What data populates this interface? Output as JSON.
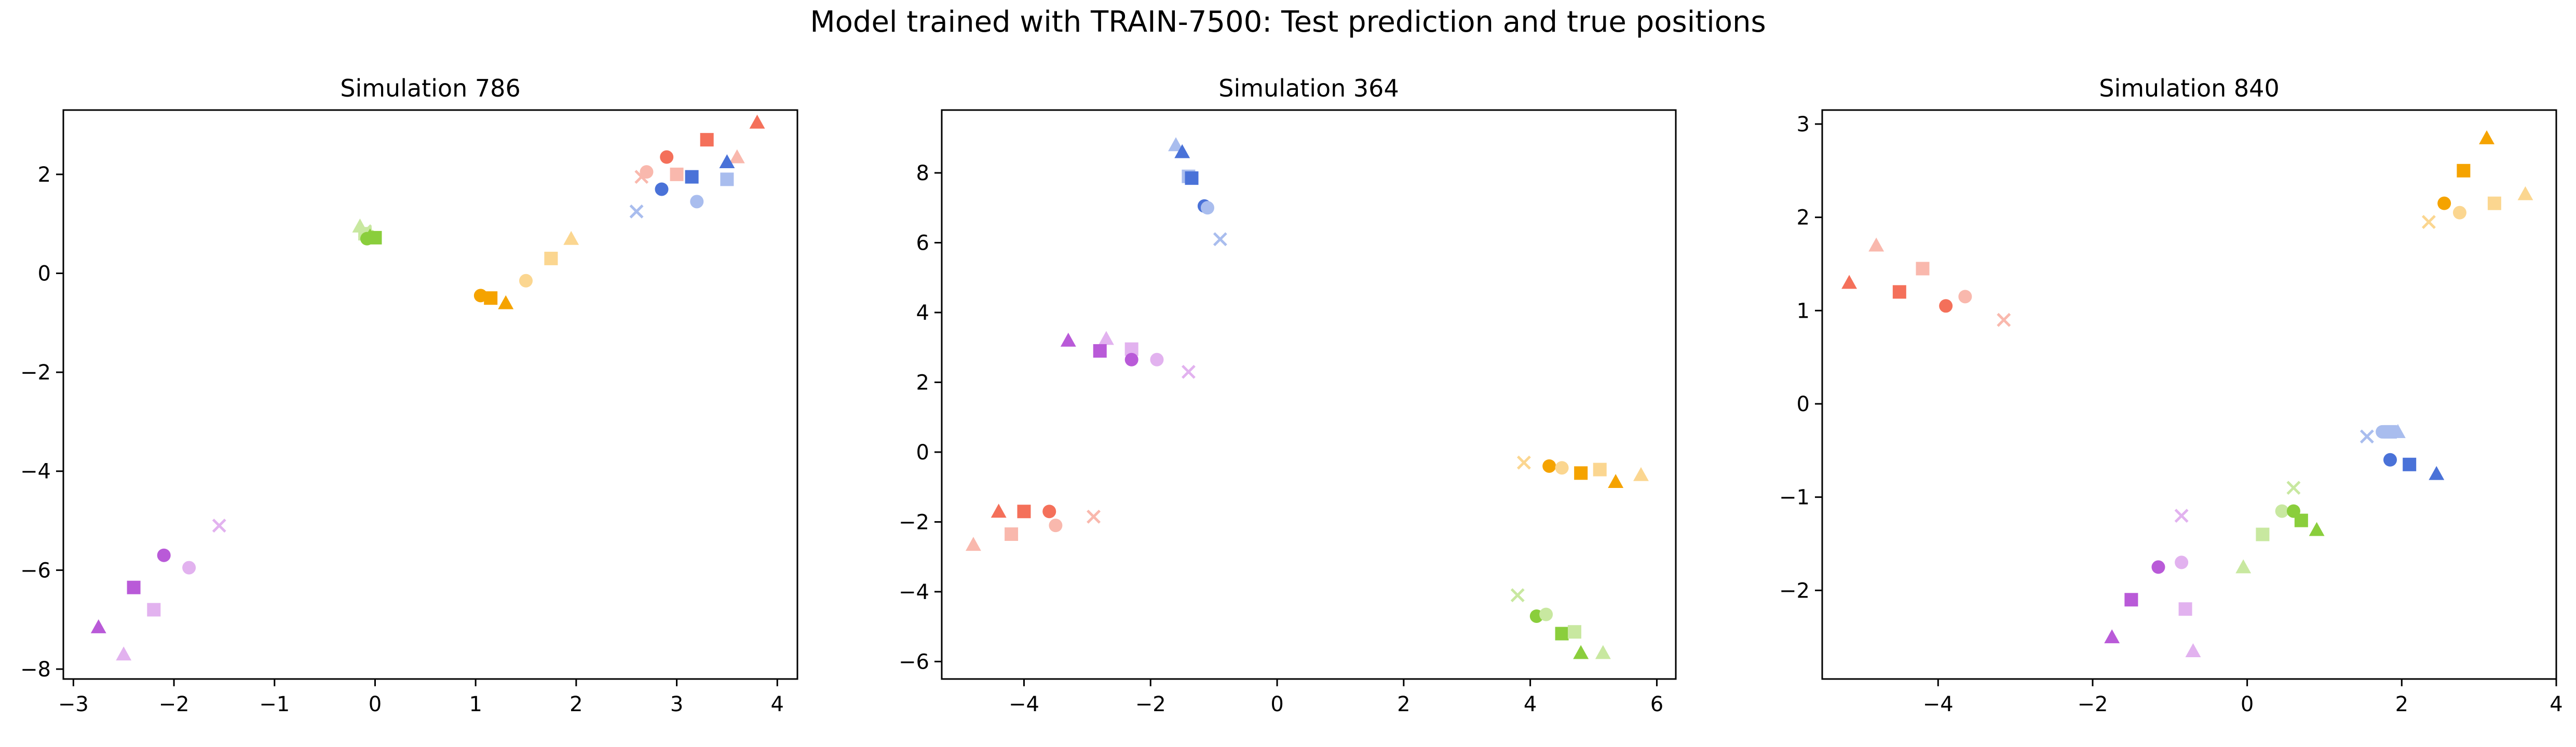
{
  "figure": {
    "suptitle": "Model trained with TRAIN-7500: Test prediction and true positions"
  },
  "colors": {
    "red": "#f4705a",
    "red_light": "#f9b8ad",
    "blue": "#4a72d8",
    "blue_light": "#a9bdee",
    "orange": "#f5a300",
    "orange_light": "#fbd690",
    "green": "#8ace3c",
    "green_light": "#c8e8a0",
    "purple": "#b95ad8",
    "purple_light": "#e2b2ef"
  },
  "chart_data": [
    {
      "type": "scatter",
      "title": "Simulation 786",
      "xlabel": "",
      "ylabel": "",
      "xlim": [
        -3.1,
        4.2
      ],
      "ylim": [
        -8.2,
        3.3
      ],
      "xticks": [
        -3,
        -2,
        -1,
        0,
        1,
        2,
        3,
        4
      ],
      "yticks": [
        -8,
        -6,
        -4,
        -2,
        0,
        2
      ],
      "grid": false,
      "points": [
        {
          "x": 3.8,
          "y": 3.05,
          "marker": "triangle",
          "color": "red"
        },
        {
          "x": 3.3,
          "y": 2.7,
          "marker": "square",
          "color": "red"
        },
        {
          "x": 2.9,
          "y": 2.35,
          "marker": "circle",
          "color": "red"
        },
        {
          "x": 3.6,
          "y": 2.35,
          "marker": "triangle",
          "color": "red_light"
        },
        {
          "x": 3.0,
          "y": 2.0,
          "marker": "square",
          "color": "red_light"
        },
        {
          "x": 2.7,
          "y": 2.05,
          "marker": "circle",
          "color": "red_light"
        },
        {
          "x": 2.65,
          "y": 1.95,
          "marker": "x",
          "color": "red_light"
        },
        {
          "x": 3.5,
          "y": 2.25,
          "marker": "triangle",
          "color": "blue"
        },
        {
          "x": 3.15,
          "y": 1.95,
          "marker": "square",
          "color": "blue"
        },
        {
          "x": 2.85,
          "y": 1.7,
          "marker": "circle",
          "color": "blue"
        },
        {
          "x": 3.5,
          "y": 1.9,
          "marker": "square",
          "color": "blue_light"
        },
        {
          "x": 3.2,
          "y": 1.45,
          "marker": "circle",
          "color": "blue_light"
        },
        {
          "x": 2.6,
          "y": 1.25,
          "marker": "x",
          "color": "blue_light"
        },
        {
          "x": -0.15,
          "y": 0.95,
          "marker": "triangle",
          "color": "green_light"
        },
        {
          "x": -0.1,
          "y": 0.8,
          "marker": "square",
          "color": "green_light"
        },
        {
          "x": -0.05,
          "y": 0.75,
          "marker": "circle",
          "color": "green_light"
        },
        {
          "x": -0.1,
          "y": 0.85,
          "marker": "x",
          "color": "green_light"
        },
        {
          "x": -0.05,
          "y": 0.75,
          "marker": "triangle",
          "color": "green"
        },
        {
          "x": 0.0,
          "y": 0.72,
          "marker": "square",
          "color": "green"
        },
        {
          "x": -0.08,
          "y": 0.7,
          "marker": "circle",
          "color": "green"
        },
        {
          "x": 1.05,
          "y": -0.45,
          "marker": "circle",
          "color": "orange"
        },
        {
          "x": 1.15,
          "y": -0.5,
          "marker": "square",
          "color": "orange"
        },
        {
          "x": 1.3,
          "y": -0.6,
          "marker": "triangle",
          "color": "orange"
        },
        {
          "x": 1.5,
          "y": -0.15,
          "marker": "circle",
          "color": "orange_light"
        },
        {
          "x": 1.75,
          "y": 0.3,
          "marker": "square",
          "color": "orange_light"
        },
        {
          "x": 1.95,
          "y": 0.7,
          "marker": "triangle",
          "color": "orange_light"
        },
        {
          "x": -2.1,
          "y": -5.7,
          "marker": "circle",
          "color": "purple"
        },
        {
          "x": -2.4,
          "y": -6.35,
          "marker": "square",
          "color": "purple"
        },
        {
          "x": -2.75,
          "y": -7.15,
          "marker": "triangle",
          "color": "purple"
        },
        {
          "x": -1.55,
          "y": -5.1,
          "marker": "x",
          "color": "purple_light"
        },
        {
          "x": -1.85,
          "y": -5.95,
          "marker": "circle",
          "color": "purple_light"
        },
        {
          "x": -2.2,
          "y": -6.8,
          "marker": "square",
          "color": "purple_light"
        },
        {
          "x": -2.5,
          "y": -7.7,
          "marker": "triangle",
          "color": "purple_light"
        }
      ]
    },
    {
      "type": "scatter",
      "title": "Simulation 364",
      "xlabel": "",
      "ylabel": "",
      "xlim": [
        -5.3,
        6.3
      ],
      "ylim": [
        -6.5,
        9.8
      ],
      "xticks": [
        -4,
        -2,
        0,
        2,
        4,
        6
      ],
      "yticks": [
        -6,
        -4,
        -2,
        0,
        2,
        4,
        6,
        8
      ],
      "grid": false,
      "points": [
        {
          "x": -1.6,
          "y": 8.8,
          "marker": "triangle",
          "color": "blue_light"
        },
        {
          "x": -1.5,
          "y": 8.6,
          "marker": "triangle",
          "color": "blue"
        },
        {
          "x": -1.4,
          "y": 7.9,
          "marker": "square",
          "color": "blue_light"
        },
        {
          "x": -1.35,
          "y": 7.85,
          "marker": "square",
          "color": "blue"
        },
        {
          "x": -1.15,
          "y": 7.05,
          "marker": "circle",
          "color": "blue"
        },
        {
          "x": -1.1,
          "y": 7.0,
          "marker": "circle",
          "color": "blue_light"
        },
        {
          "x": -0.9,
          "y": 6.1,
          "marker": "x",
          "color": "blue_light"
        },
        {
          "x": -3.3,
          "y": 3.2,
          "marker": "triangle",
          "color": "purple"
        },
        {
          "x": -2.7,
          "y": 3.25,
          "marker": "triangle",
          "color": "purple_light"
        },
        {
          "x": -2.8,
          "y": 2.9,
          "marker": "square",
          "color": "purple"
        },
        {
          "x": -2.3,
          "y": 2.95,
          "marker": "square",
          "color": "purple_light"
        },
        {
          "x": -2.3,
          "y": 2.65,
          "marker": "circle",
          "color": "purple"
        },
        {
          "x": -1.9,
          "y": 2.65,
          "marker": "circle",
          "color": "purple_light"
        },
        {
          "x": -1.4,
          "y": 2.3,
          "marker": "x",
          "color": "purple_light"
        },
        {
          "x": -4.4,
          "y": -1.7,
          "marker": "triangle",
          "color": "red"
        },
        {
          "x": -4.0,
          "y": -1.7,
          "marker": "square",
          "color": "red"
        },
        {
          "x": -3.6,
          "y": -1.7,
          "marker": "circle",
          "color": "red"
        },
        {
          "x": -2.9,
          "y": -1.85,
          "marker": "x",
          "color": "red_light"
        },
        {
          "x": -3.5,
          "y": -2.1,
          "marker": "circle",
          "color": "red_light"
        },
        {
          "x": -4.2,
          "y": -2.35,
          "marker": "square",
          "color": "red_light"
        },
        {
          "x": -4.8,
          "y": -2.65,
          "marker": "triangle",
          "color": "red_light"
        },
        {
          "x": 3.9,
          "y": -0.3,
          "marker": "x",
          "color": "orange_light"
        },
        {
          "x": 4.3,
          "y": -0.4,
          "marker": "circle",
          "color": "orange"
        },
        {
          "x": 4.5,
          "y": -0.45,
          "marker": "circle",
          "color": "orange_light"
        },
        {
          "x": 4.8,
          "y": -0.6,
          "marker": "square",
          "color": "orange"
        },
        {
          "x": 5.1,
          "y": -0.5,
          "marker": "square",
          "color": "orange_light"
        },
        {
          "x": 5.35,
          "y": -0.85,
          "marker": "triangle",
          "color": "orange"
        },
        {
          "x": 5.75,
          "y": -0.65,
          "marker": "triangle",
          "color": "orange_light"
        },
        {
          "x": 3.8,
          "y": -4.1,
          "marker": "x",
          "color": "green_light"
        },
        {
          "x": 4.1,
          "y": -4.7,
          "marker": "circle",
          "color": "green"
        },
        {
          "x": 4.25,
          "y": -4.65,
          "marker": "circle",
          "color": "green_light"
        },
        {
          "x": 4.5,
          "y": -5.2,
          "marker": "square",
          "color": "green"
        },
        {
          "x": 4.7,
          "y": -5.15,
          "marker": "square",
          "color": "green_light"
        },
        {
          "x": 4.8,
          "y": -5.75,
          "marker": "triangle",
          "color": "green"
        },
        {
          "x": 5.15,
          "y": -5.75,
          "marker": "triangle",
          "color": "green_light"
        }
      ]
    },
    {
      "type": "scatter",
      "title": "Simulation 840",
      "xlabel": "",
      "ylabel": "",
      "xlim": [
        -5.5,
        4.0
      ],
      "ylim": [
        -2.95,
        3.15
      ],
      "xticks": [
        -4,
        -2,
        0,
        2,
        4
      ],
      "yticks": [
        -2,
        -1,
        0,
        1,
        2,
        3
      ],
      "grid": false,
      "points": [
        {
          "x": 3.1,
          "y": 2.85,
          "marker": "triangle",
          "color": "orange"
        },
        {
          "x": 2.8,
          "y": 2.5,
          "marker": "square",
          "color": "orange"
        },
        {
          "x": 2.55,
          "y": 2.15,
          "marker": "circle",
          "color": "orange"
        },
        {
          "x": 3.6,
          "y": 2.25,
          "marker": "triangle",
          "color": "orange_light"
        },
        {
          "x": 3.2,
          "y": 2.15,
          "marker": "square",
          "color": "orange_light"
        },
        {
          "x": 2.75,
          "y": 2.05,
          "marker": "circle",
          "color": "orange_light"
        },
        {
          "x": 2.35,
          "y": 1.95,
          "marker": "x",
          "color": "orange_light"
        },
        {
          "x": -5.15,
          "y": 1.3,
          "marker": "triangle",
          "color": "red"
        },
        {
          "x": -4.5,
          "y": 1.2,
          "marker": "square",
          "color": "red"
        },
        {
          "x": -3.9,
          "y": 1.05,
          "marker": "circle",
          "color": "red"
        },
        {
          "x": -4.8,
          "y": 1.7,
          "marker": "triangle",
          "color": "red_light"
        },
        {
          "x": -4.2,
          "y": 1.45,
          "marker": "square",
          "color": "red_light"
        },
        {
          "x": -3.65,
          "y": 1.15,
          "marker": "circle",
          "color": "red_light"
        },
        {
          "x": -3.15,
          "y": 0.9,
          "marker": "x",
          "color": "red_light"
        },
        {
          "x": 1.55,
          "y": -0.35,
          "marker": "x",
          "color": "blue_light"
        },
        {
          "x": 1.75,
          "y": -0.3,
          "marker": "circle",
          "color": "blue_light"
        },
        {
          "x": 1.85,
          "y": -0.3,
          "marker": "square",
          "color": "blue_light"
        },
        {
          "x": 1.95,
          "y": -0.3,
          "marker": "triangle",
          "color": "blue_light"
        },
        {
          "x": 1.85,
          "y": -0.6,
          "marker": "circle",
          "color": "blue"
        },
        {
          "x": 2.1,
          "y": -0.65,
          "marker": "square",
          "color": "blue"
        },
        {
          "x": 2.45,
          "y": -0.75,
          "marker": "triangle",
          "color": "blue"
        },
        {
          "x": 0.6,
          "y": -0.9,
          "marker": "x",
          "color": "green_light"
        },
        {
          "x": 0.45,
          "y": -1.15,
          "marker": "circle",
          "color": "green_light"
        },
        {
          "x": 0.6,
          "y": -1.15,
          "marker": "circle",
          "color": "green"
        },
        {
          "x": 0.7,
          "y": -1.25,
          "marker": "square",
          "color": "green"
        },
        {
          "x": 0.2,
          "y": -1.4,
          "marker": "square",
          "color": "green_light"
        },
        {
          "x": 0.9,
          "y": -1.35,
          "marker": "triangle",
          "color": "green"
        },
        {
          "x": -0.05,
          "y": -1.75,
          "marker": "triangle",
          "color": "green_light"
        },
        {
          "x": -0.85,
          "y": -1.2,
          "marker": "x",
          "color": "purple_light"
        },
        {
          "x": -0.85,
          "y": -1.7,
          "marker": "circle",
          "color": "purple_light"
        },
        {
          "x": -1.15,
          "y": -1.75,
          "marker": "circle",
          "color": "purple"
        },
        {
          "x": -1.5,
          "y": -2.1,
          "marker": "square",
          "color": "purple"
        },
        {
          "x": -0.8,
          "y": -2.2,
          "marker": "square",
          "color": "purple_light"
        },
        {
          "x": -1.75,
          "y": -2.5,
          "marker": "triangle",
          "color": "purple"
        },
        {
          "x": -0.7,
          "y": -2.65,
          "marker": "triangle",
          "color": "purple_light"
        }
      ]
    }
  ]
}
